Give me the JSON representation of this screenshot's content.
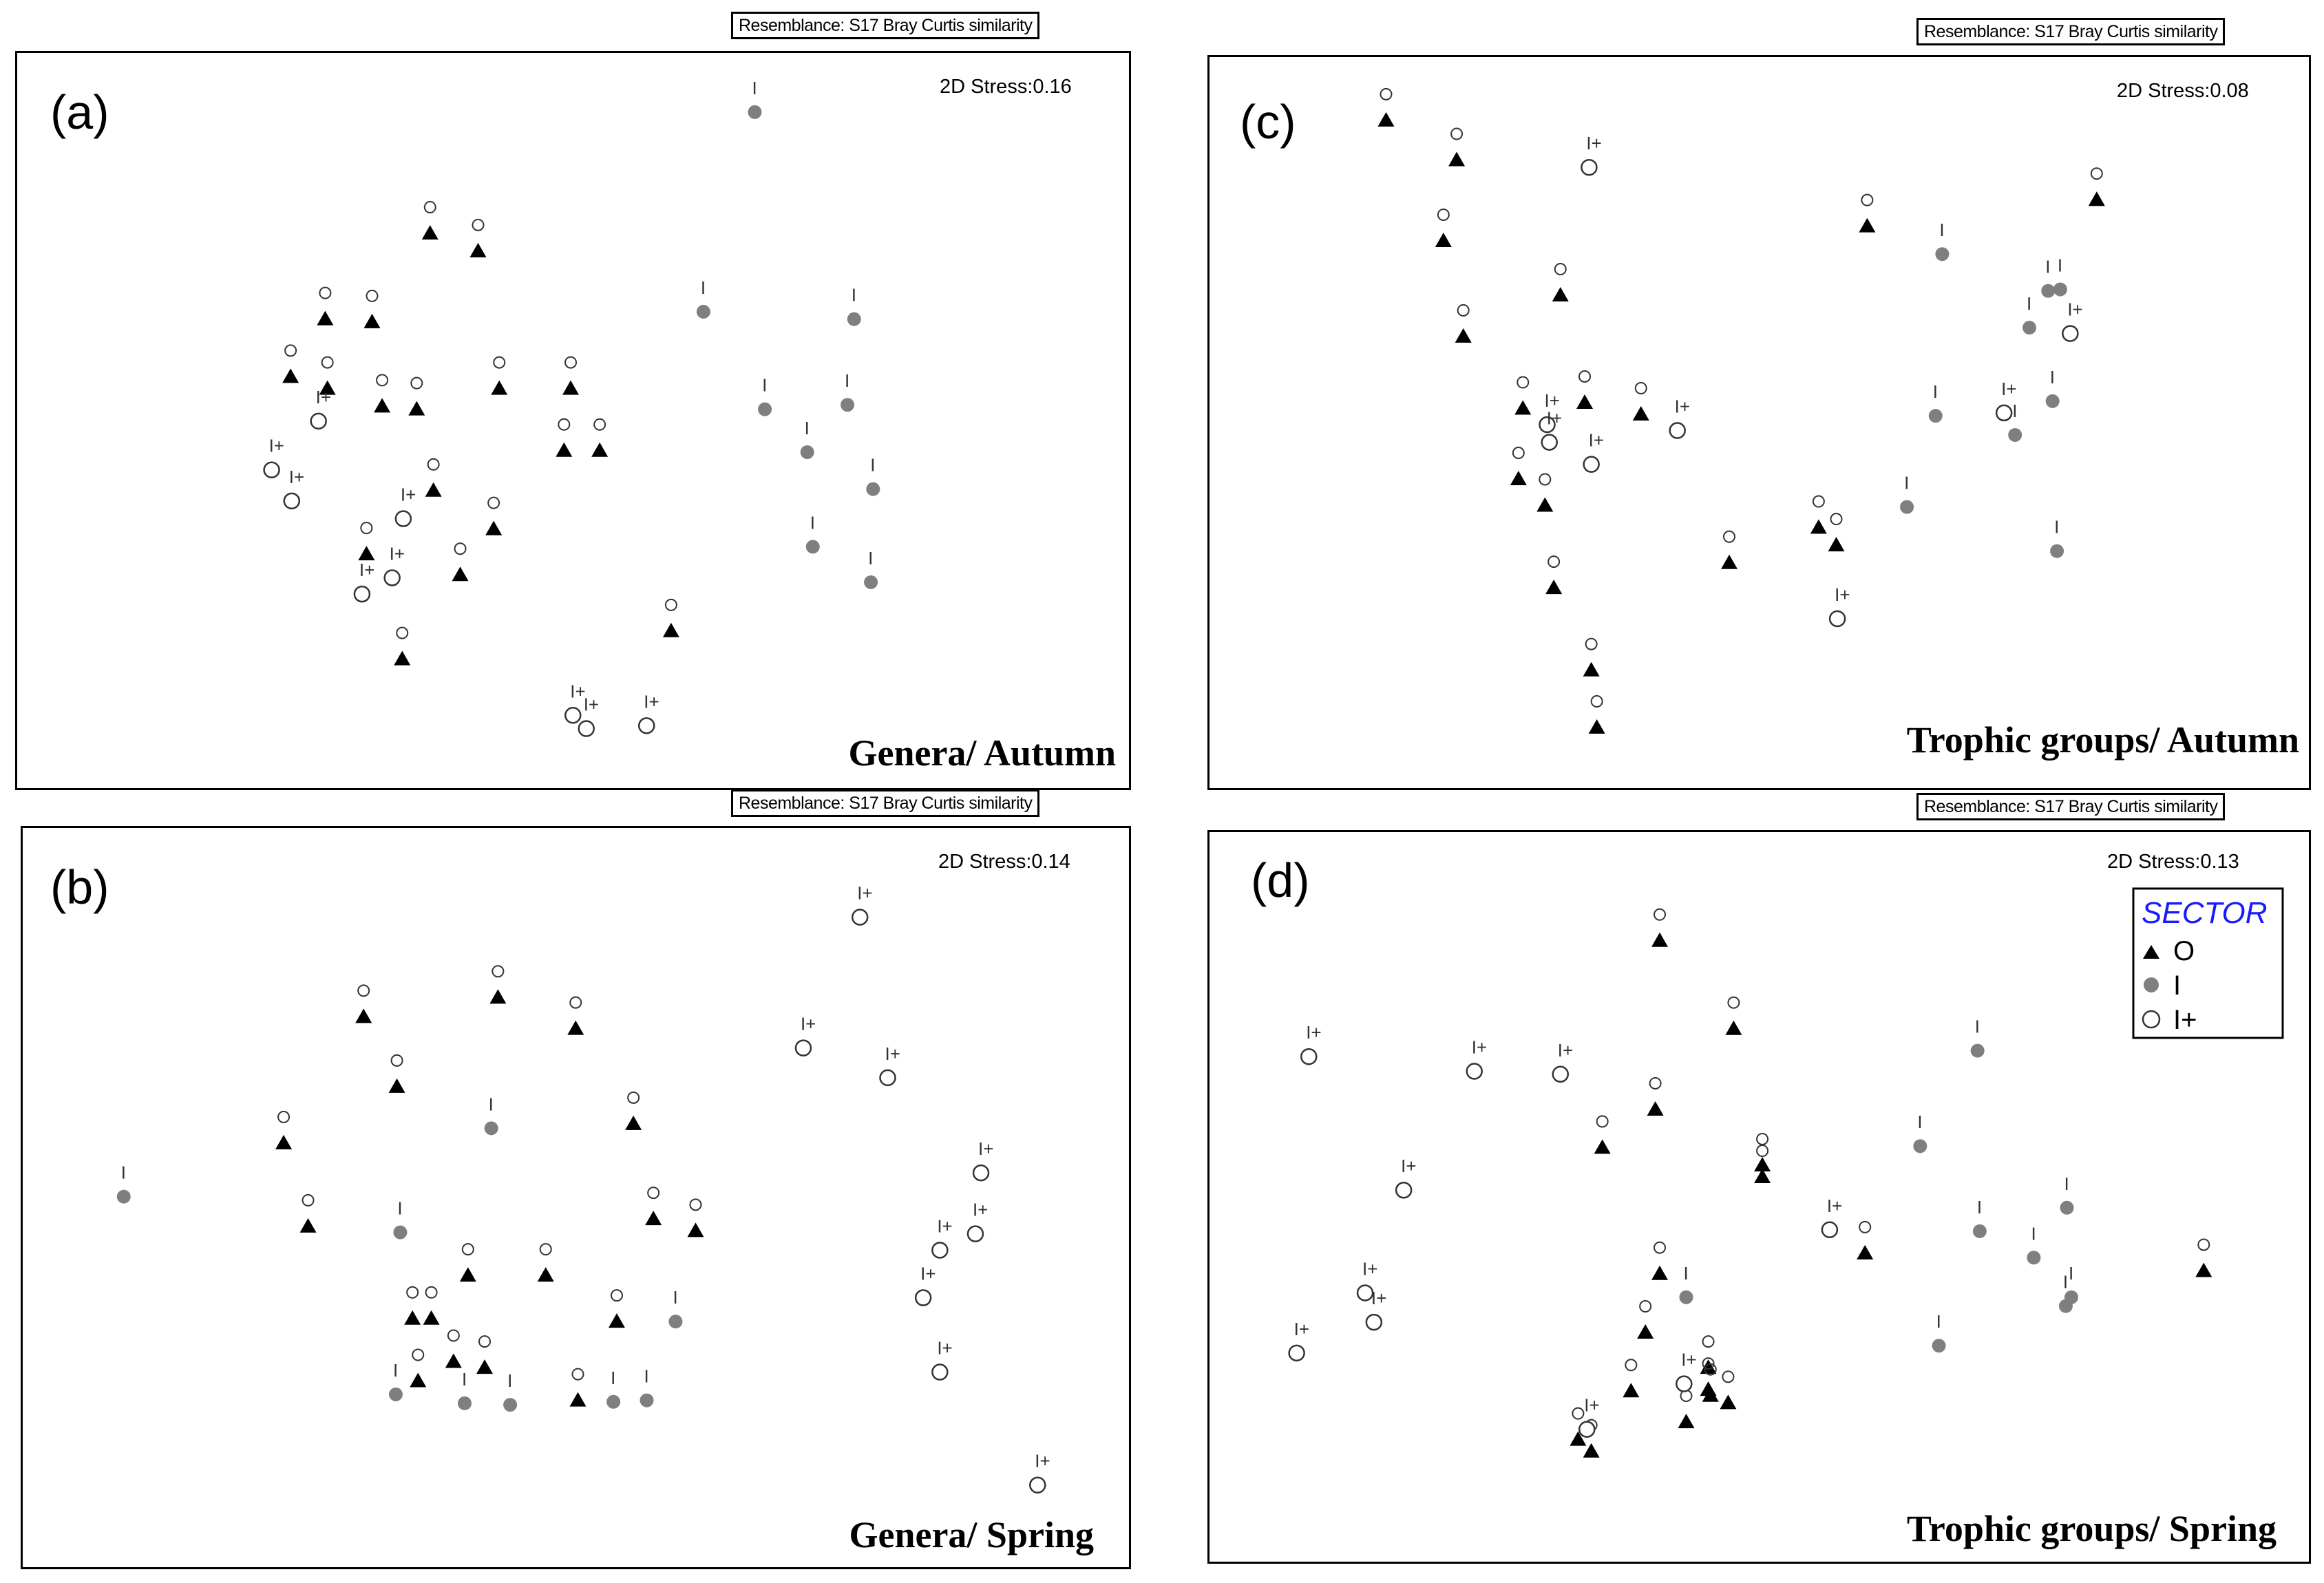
{
  "resemblance_label": "Resemblance: S17 Bray Curtis similarity",
  "legend": {
    "title": "SECTOR",
    "entries": [
      {
        "label": "O",
        "marker": "triangle"
      },
      {
        "label": "I",
        "marker": "dot"
      },
      {
        "label": "I+",
        "marker": "circle"
      }
    ]
  },
  "colors": {
    "O": "#000000",
    "I": "#7f7f7f",
    "I+": "#ffffff",
    "label": "#333333",
    "legend_title": "#1a1aff"
  },
  "chart_data": [
    {
      "type": "scatter",
      "id": "a",
      "panel_label": "(a)",
      "stress": "2D Stress:0.16",
      "title": "Genera/ Autumn",
      "xlim": [
        0,
        100
      ],
      "ylim": [
        0,
        100
      ],
      "points": [
        {
          "s": "O",
          "x": 37.0,
          "y": 75.6
        },
        {
          "s": "O",
          "x": 41.3,
          "y": 73.2
        },
        {
          "s": "O",
          "x": 27.6,
          "y": 64.0
        },
        {
          "s": "O",
          "x": 31.8,
          "y": 63.6
        },
        {
          "s": "O",
          "x": 24.5,
          "y": 56.2
        },
        {
          "s": "O",
          "x": 27.8,
          "y": 54.6
        },
        {
          "s": "O",
          "x": 32.7,
          "y": 52.2
        },
        {
          "s": "O",
          "x": 35.8,
          "y": 51.8
        },
        {
          "s": "O",
          "x": 43.2,
          "y": 54.6
        },
        {
          "s": "O",
          "x": 49.6,
          "y": 54.6
        },
        {
          "s": "O",
          "x": 49.0,
          "y": 46.2
        },
        {
          "s": "O",
          "x": 52.2,
          "y": 46.2
        },
        {
          "s": "O",
          "x": 37.3,
          "y": 40.8
        },
        {
          "s": "O",
          "x": 42.7,
          "y": 35.6
        },
        {
          "s": "O",
          "x": 31.3,
          "y": 32.2
        },
        {
          "s": "O",
          "x": 39.7,
          "y": 29.4
        },
        {
          "s": "O",
          "x": 58.6,
          "y": 21.8
        },
        {
          "s": "O",
          "x": 34.5,
          "y": 18.0
        },
        {
          "s": "I",
          "x": 66.1,
          "y": 92.0
        },
        {
          "s": "I",
          "x": 61.5,
          "y": 65.0
        },
        {
          "s": "I",
          "x": 75.0,
          "y": 64.0
        },
        {
          "s": "I",
          "x": 67.0,
          "y": 51.8
        },
        {
          "s": "I",
          "x": 74.4,
          "y": 52.4
        },
        {
          "s": "I",
          "x": 70.8,
          "y": 46.0
        },
        {
          "s": "I",
          "x": 76.7,
          "y": 41.0
        },
        {
          "s": "I",
          "x": 71.3,
          "y": 33.2
        },
        {
          "s": "I",
          "x": 76.5,
          "y": 28.4
        },
        {
          "s": "I+",
          "x": 27.0,
          "y": 50.2
        },
        {
          "s": "I+",
          "x": 22.8,
          "y": 43.6
        },
        {
          "s": "I+",
          "x": 24.6,
          "y": 39.4
        },
        {
          "s": "I+",
          "x": 34.6,
          "y": 37.0
        },
        {
          "s": "I+",
          "x": 33.6,
          "y": 29.0
        },
        {
          "s": "I+",
          "x": 30.9,
          "y": 26.8
        },
        {
          "s": "I+",
          "x": 49.8,
          "y": 10.4
        },
        {
          "s": "I+",
          "x": 51.0,
          "y": 8.6
        },
        {
          "s": "I+",
          "x": 56.4,
          "y": 9.0
        }
      ]
    },
    {
      "type": "scatter",
      "id": "b",
      "panel_label": "(b)",
      "stress": "2D Stress:0.14",
      "title": "Genera/ Spring",
      "xlim": [
        0,
        100
      ],
      "ylim": [
        0,
        100
      ],
      "points": [
        {
          "s": "O",
          "x": 30.7,
          "y": 74.6
        },
        {
          "s": "O",
          "x": 42.8,
          "y": 77.2
        },
        {
          "s": "O",
          "x": 49.8,
          "y": 73.0
        },
        {
          "s": "O",
          "x": 33.7,
          "y": 65.2
        },
        {
          "s": "O",
          "x": 23.5,
          "y": 57.6
        },
        {
          "s": "O",
          "x": 55.0,
          "y": 60.2
        },
        {
          "s": "O",
          "x": 25.7,
          "y": 46.4
        },
        {
          "s": "O",
          "x": 56.8,
          "y": 47.4
        },
        {
          "s": "O",
          "x": 60.6,
          "y": 45.8
        },
        {
          "s": "O",
          "x": 40.1,
          "y": 39.8
        },
        {
          "s": "O",
          "x": 47.1,
          "y": 39.8
        },
        {
          "s": "O",
          "x": 35.1,
          "y": 34.0
        },
        {
          "s": "O",
          "x": 36.8,
          "y": 34.0
        },
        {
          "s": "O",
          "x": 53.5,
          "y": 33.6
        },
        {
          "s": "O",
          "x": 38.8,
          "y": 28.2
        },
        {
          "s": "O",
          "x": 41.6,
          "y": 27.4
        },
        {
          "s": "O",
          "x": 35.6,
          "y": 25.6
        },
        {
          "s": "O",
          "x": 50.0,
          "y": 23.0
        },
        {
          "s": "I",
          "x": 9.1,
          "y": 50.4
        },
        {
          "s": "I",
          "x": 42.2,
          "y": 59.6
        },
        {
          "s": "I",
          "x": 34.0,
          "y": 45.6
        },
        {
          "s": "I",
          "x": 58.8,
          "y": 33.6
        },
        {
          "s": "I",
          "x": 33.6,
          "y": 23.8
        },
        {
          "s": "I",
          "x": 39.8,
          "y": 22.6
        },
        {
          "s": "I",
          "x": 43.9,
          "y": 22.4
        },
        {
          "s": "I",
          "x": 53.2,
          "y": 22.8
        },
        {
          "s": "I",
          "x": 56.2,
          "y": 23.0
        },
        {
          "s": "I+",
          "x": 75.4,
          "y": 88.0
        },
        {
          "s": "I+",
          "x": 70.3,
          "y": 70.4
        },
        {
          "s": "I+",
          "x": 77.9,
          "y": 66.4
        },
        {
          "s": "I+",
          "x": 86.3,
          "y": 53.6
        },
        {
          "s": "I+",
          "x": 85.8,
          "y": 45.4
        },
        {
          "s": "I+",
          "x": 82.6,
          "y": 43.2
        },
        {
          "s": "I+",
          "x": 81.1,
          "y": 36.8
        },
        {
          "s": "I+",
          "x": 82.6,
          "y": 26.8
        },
        {
          "s": "I+",
          "x": 91.4,
          "y": 11.6
        }
      ]
    },
    {
      "type": "scatter",
      "id": "c",
      "panel_label": "(c)",
      "stress": "2D Stress:0.08",
      "title": "Trophic groups/ Autumn",
      "xlim": [
        0,
        100
      ],
      "ylim": [
        0,
        100
      ],
      "points": [
        {
          "s": "O",
          "x": 16.0,
          "y": 91.4
        },
        {
          "s": "O",
          "x": 22.4,
          "y": 86.0
        },
        {
          "s": "O",
          "x": 21.2,
          "y": 75.0
        },
        {
          "s": "O",
          "x": 23.0,
          "y": 62.0
        },
        {
          "s": "O",
          "x": 31.8,
          "y": 67.6
        },
        {
          "s": "O",
          "x": 28.4,
          "y": 52.2
        },
        {
          "s": "O",
          "x": 34.0,
          "y": 53.0
        },
        {
          "s": "O",
          "x": 39.1,
          "y": 51.4
        },
        {
          "s": "O",
          "x": 28.0,
          "y": 42.6
        },
        {
          "s": "O",
          "x": 30.4,
          "y": 39.0
        },
        {
          "s": "O",
          "x": 31.2,
          "y": 27.8
        },
        {
          "s": "O",
          "x": 34.6,
          "y": 16.6
        },
        {
          "s": "O",
          "x": 35.1,
          "y": 8.8
        },
        {
          "s": "O",
          "x": 47.1,
          "y": 31.2
        },
        {
          "s": "O",
          "x": 55.2,
          "y": 36.0
        },
        {
          "s": "O",
          "x": 56.8,
          "y": 33.6
        },
        {
          "s": "O",
          "x": 59.6,
          "y": 77.0
        },
        {
          "s": "O",
          "x": 80.4,
          "y": 80.6
        },
        {
          "s": "I",
          "x": 66.4,
          "y": 73.2
        },
        {
          "s": "I",
          "x": 74.3,
          "y": 63.2
        },
        {
          "s": "I",
          "x": 76.0,
          "y": 68.2
        },
        {
          "s": "I",
          "x": 77.1,
          "y": 68.4
        },
        {
          "s": "I",
          "x": 65.8,
          "y": 51.2
        },
        {
          "s": "I",
          "x": 73.0,
          "y": 48.6
        },
        {
          "s": "I",
          "x": 76.4,
          "y": 53.2
        },
        {
          "s": "I",
          "x": 63.2,
          "y": 38.8
        },
        {
          "s": "I",
          "x": 76.8,
          "y": 32.8
        },
        {
          "s": "I+",
          "x": 34.4,
          "y": 85.0
        },
        {
          "s": "I+",
          "x": 78.0,
          "y": 62.4
        },
        {
          "s": "I+",
          "x": 72.0,
          "y": 51.6
        },
        {
          "s": "I+",
          "x": 30.6,
          "y": 50.0
        },
        {
          "s": "I+",
          "x": 30.8,
          "y": 47.6
        },
        {
          "s": "I+",
          "x": 42.4,
          "y": 49.2
        },
        {
          "s": "I+",
          "x": 34.6,
          "y": 44.6
        },
        {
          "s": "I+",
          "x": 56.9,
          "y": 23.6
        }
      ]
    },
    {
      "type": "scatter",
      "id": "d",
      "panel_label": "(d)",
      "stress": "2D Stress:0.13",
      "title": "Trophic groups/ Spring",
      "xlim": [
        0,
        100
      ],
      "ylim": [
        0,
        100
      ],
      "points": [
        {
          "s": "O",
          "x": 40.8,
          "y": 85.2
        },
        {
          "s": "O",
          "x": 47.5,
          "y": 73.2
        },
        {
          "s": "O",
          "x": 40.4,
          "y": 62.2
        },
        {
          "s": "O",
          "x": 35.6,
          "y": 57.0
        },
        {
          "s": "O",
          "x": 50.1,
          "y": 54.6
        },
        {
          "s": "O",
          "x": 50.1,
          "y": 53.0
        },
        {
          "s": "O",
          "x": 59.4,
          "y": 42.6
        },
        {
          "s": "O",
          "x": 90.1,
          "y": 40.2
        },
        {
          "s": "O",
          "x": 40.8,
          "y": 39.8
        },
        {
          "s": "O",
          "x": 39.5,
          "y": 31.8
        },
        {
          "s": "O",
          "x": 38.2,
          "y": 23.8
        },
        {
          "s": "O",
          "x": 45.2,
          "y": 27.0
        },
        {
          "s": "O",
          "x": 45.2,
          "y": 24.0
        },
        {
          "s": "O",
          "x": 45.4,
          "y": 23.2
        },
        {
          "s": "O",
          "x": 47.0,
          "y": 22.2
        },
        {
          "s": "O",
          "x": 43.2,
          "y": 19.6
        },
        {
          "s": "O",
          "x": 33.4,
          "y": 17.2
        },
        {
          "s": "O",
          "x": 34.6,
          "y": 15.6
        },
        {
          "s": "I",
          "x": 69.6,
          "y": 70.2
        },
        {
          "s": "I",
          "x": 64.4,
          "y": 57.2
        },
        {
          "s": "I",
          "x": 69.8,
          "y": 45.6
        },
        {
          "s": "I",
          "x": 77.7,
          "y": 48.8
        },
        {
          "s": "I",
          "x": 74.7,
          "y": 42.0
        },
        {
          "s": "I",
          "x": 43.2,
          "y": 36.6
        },
        {
          "s": "I",
          "x": 77.6,
          "y": 35.4
        },
        {
          "s": "I",
          "x": 78.1,
          "y": 36.6
        },
        {
          "s": "I",
          "x": 66.1,
          "y": 30.0
        },
        {
          "s": "I+",
          "x": 9.0,
          "y": 69.4
        },
        {
          "s": "I+",
          "x": 24.0,
          "y": 67.4
        },
        {
          "s": "I+",
          "x": 31.8,
          "y": 67.0
        },
        {
          "s": "I+",
          "x": 17.6,
          "y": 51.2
        },
        {
          "s": "I+",
          "x": 14.1,
          "y": 37.2
        },
        {
          "s": "I+",
          "x": 14.9,
          "y": 33.2
        },
        {
          "s": "I+",
          "x": 7.9,
          "y": 29.0
        },
        {
          "s": "I+",
          "x": 56.2,
          "y": 45.8
        },
        {
          "s": "I+",
          "x": 43.0,
          "y": 24.8
        },
        {
          "s": "I+",
          "x": 34.2,
          "y": 18.6
        }
      ]
    }
  ]
}
